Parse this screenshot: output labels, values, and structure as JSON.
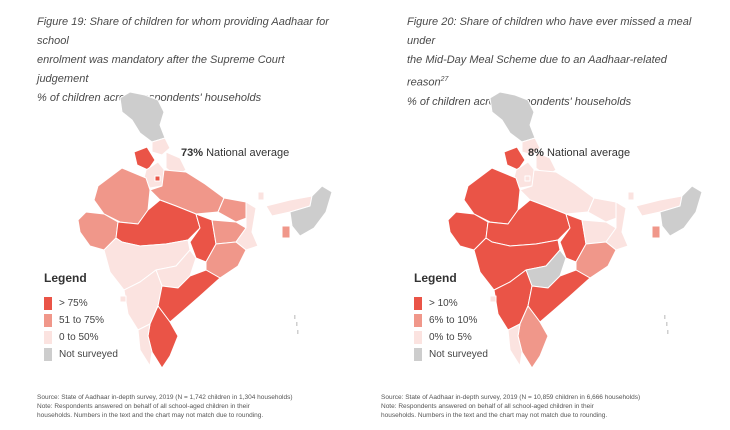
{
  "colors": {
    "high": "#ea5447",
    "mid": "#f0978a",
    "low": "#fbe3e0",
    "none": "#cdcdcd"
  },
  "figures": [
    {
      "caption_lines": [
        "Figure 19: Share of children for whom providing Aadhaar for school",
        "enrolment was mandatory after the Supreme Court judgement",
        "% of children across respondents' households"
      ],
      "caption_sup": "",
      "national_value": "73%",
      "national_label": "National average",
      "legend_title": "Legend",
      "legend": [
        {
          "label": "> 75%",
          "color": "#ea5447"
        },
        {
          "label": "51 to 75%",
          "color": "#f0978a"
        },
        {
          "label": "0 to 50%",
          "color": "#fbe3e0"
        },
        {
          "label": "Not surveyed",
          "color": "#cdcdcd"
        }
      ],
      "source_lines": [
        "Source: State of Aadhaar in-depth survey, 2019 (N = 1,742 children in 1,304 households)",
        "Note: Respondents answered on behalf of all school-aged children in their",
        "households. Numbers in the text and the chart may not match due to rounding."
      ],
      "regions": {
        "jk": "none",
        "hp": "low",
        "pb": "high",
        "uk": "low",
        "hr": "low",
        "dl": "high",
        "rj": "mid",
        "up": "mid",
        "bh": "mid",
        "gj": "mid",
        "mp": "high",
        "cg": "high",
        "jh": "mid",
        "wb": "low",
        "od": "mid",
        "mh": "low",
        "tg": "low",
        "ka": "low",
        "ap": "high",
        "tn": "high",
        "kl": "low",
        "goa": "low",
        "ne": "none",
        "as": "low",
        "sk": "low",
        "tr": "mid"
      }
    },
    {
      "caption_lines": [
        "Figure 20: Share of children who have ever missed a meal under",
        "the Mid-Day Meal Scheme due to an Aadhaar-related reason",
        "% of children across respondents' households"
      ],
      "caption_sup": "27",
      "national_value": "8%",
      "national_label": "National average",
      "legend_title": "Legend",
      "legend": [
        {
          "label": "> 10%",
          "color": "#ea5447"
        },
        {
          "label": "6% to 10%",
          "color": "#f0978a"
        },
        {
          "label": "0% to 5%",
          "color": "#fbe3e0"
        },
        {
          "label": "Not surveyed",
          "color": "#cdcdcd"
        }
      ],
      "source_lines": [
        "Source: State of Aadhaar in-depth survey, 2019 (N = 10,859 children in 6,666 households)",
        "Note: Respondents answered on behalf of all school-aged children in their",
        "households. Numbers in the text and the chart may not match due to rounding."
      ],
      "regions": {
        "jk": "none",
        "hp": "low",
        "pb": "high",
        "uk": "low",
        "hr": "low",
        "dl": "low",
        "rj": "high",
        "up": "low",
        "bh": "low",
        "gj": "high",
        "mp": "high",
        "cg": "high",
        "jh": "low",
        "wb": "low",
        "od": "mid",
        "mh": "high",
        "tg": "none",
        "ka": "high",
        "ap": "high",
        "tn": "mid",
        "kl": "low",
        "goa": "low",
        "ne": "none",
        "as": "low",
        "sk": "low",
        "tr": "mid"
      }
    }
  ]
}
